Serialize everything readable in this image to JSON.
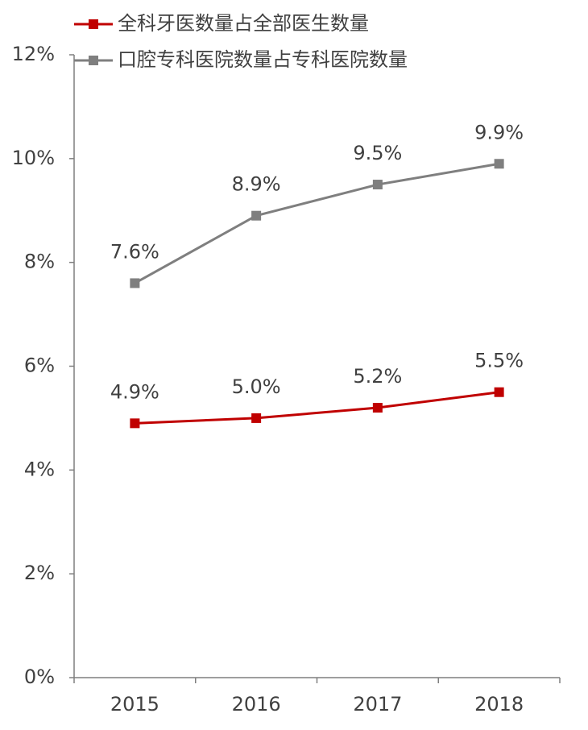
{
  "chart_data": {
    "type": "line",
    "categories": [
      "2015",
      "2016",
      "2017",
      "2018"
    ],
    "series": [
      {
        "name": "全科牙医数量占全部医生数量",
        "color": "#c00000",
        "values": [
          4.9,
          5.0,
          5.2,
          5.5
        ],
        "value_labels": [
          "4.9%",
          "5.0%",
          "5.2%",
          "5.5%"
        ]
      },
      {
        "name": "口腔专科医院数量占专科医院数量",
        "color": "#7f7f7f",
        "values": [
          7.6,
          8.9,
          9.5,
          9.9
        ],
        "value_labels": [
          "7.6%",
          "8.9%",
          "9.5%",
          "9.9%"
        ]
      }
    ],
    "ylim": [
      0,
      12
    ],
    "yticks": [
      {
        "value": 0,
        "label": "0%"
      },
      {
        "value": 2,
        "label": "2%"
      },
      {
        "value": 4,
        "label": "4%"
      },
      {
        "value": 6,
        "label": "6%"
      },
      {
        "value": 8,
        "label": "8%"
      },
      {
        "value": 10,
        "label": "10%"
      },
      {
        "value": 12,
        "label": "12%"
      }
    ],
    "grid": false,
    "legend": "top"
  }
}
